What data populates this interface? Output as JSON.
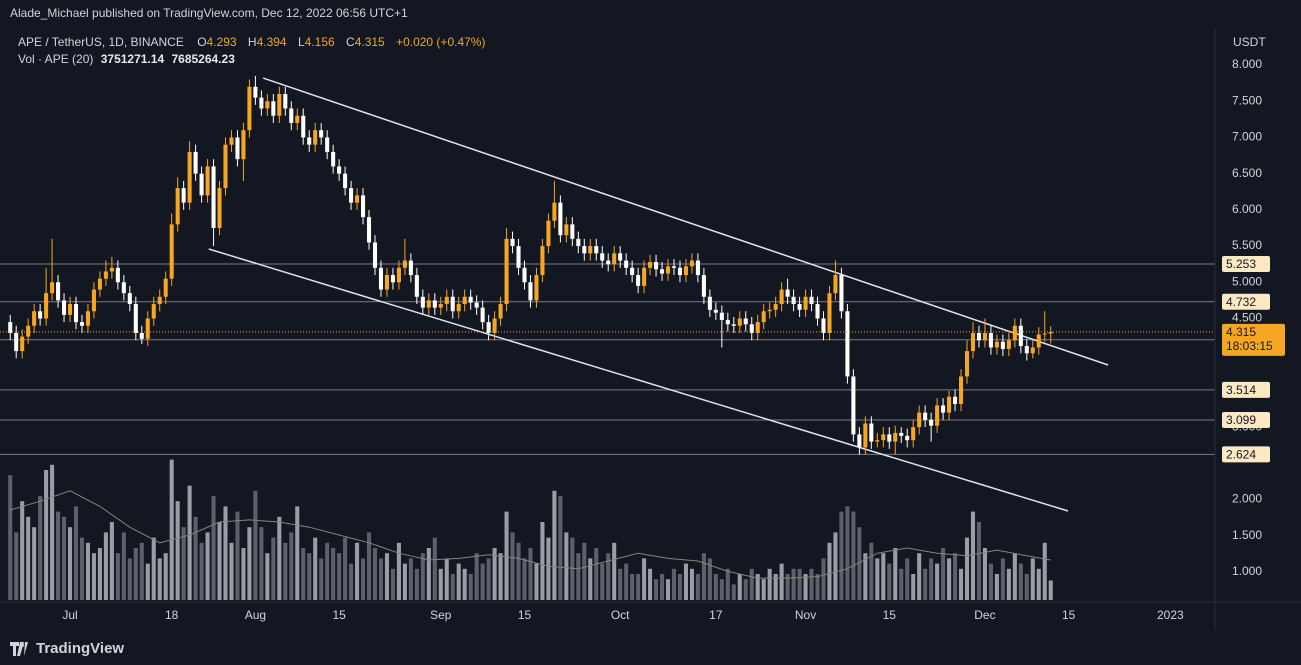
{
  "header": {
    "byline": "Alade_Michael published on TradingView.com, Dec 12, 2022 06:56 UTC+1"
  },
  "footer": {
    "brand": "TradingView"
  },
  "chart_data": {
    "type": "candlestick",
    "symbol": "APE / TetherUS, 1D, BINANCE",
    "ohlc_keys": [
      "O",
      "H",
      "L",
      "C"
    ],
    "change": "+0.020 (+0.47%)",
    "volume_title": "Vol · APE (20)",
    "price_unit": "USDT",
    "up_color": "#f5a623",
    "down_color": "#ffffff",
    "up_volume_color": "#9a9da6",
    "down_volume_color": "#5d606b",
    "level_color": "#fce9c4",
    "grid": false,
    "xlim": [
      -1.71,
      201.47
    ],
    "xticks": [
      {
        "value": 10,
        "label": "Jul"
      },
      {
        "value": 27,
        "label": "18"
      },
      {
        "value": 41,
        "label": "Aug"
      },
      {
        "value": 55,
        "label": "15"
      },
      {
        "value": 72,
        "label": "Sep"
      },
      {
        "value": 86,
        "label": "15"
      },
      {
        "value": 102,
        "label": "Oct"
      },
      {
        "value": 118,
        "label": "17"
      },
      {
        "value": 133,
        "label": "Nov"
      },
      {
        "value": 147,
        "label": "15"
      },
      {
        "value": 163,
        "label": "Dec"
      },
      {
        "value": 177,
        "label": "15"
      },
      {
        "value": 194,
        "label": "2023"
      }
    ],
    "ylim": [
      0.613,
      8.456
    ],
    "yticks": [
      {
        "value": 1,
        "label": "1.000"
      },
      {
        "value": 1.5,
        "label": "1.500"
      },
      {
        "value": 2,
        "label": "2.000"
      },
      {
        "value": 3,
        "label": "3.000"
      },
      {
        "value": 4.5,
        "label": "4.500"
      },
      {
        "value": 5,
        "label": "5.000"
      },
      {
        "value": 5.5,
        "label": "5.500"
      },
      {
        "value": 6,
        "label": "6.000"
      },
      {
        "value": 6.5,
        "label": "6.500"
      },
      {
        "value": 7,
        "label": "7.000"
      },
      {
        "value": 7.5,
        "label": "7.500"
      },
      {
        "value": 8,
        "label": "8.000"
      }
    ],
    "vol_ylim": [
      0,
      30000000
    ],
    "levels": [
      5.253,
      4.732,
      4.206,
      3.514,
      3.099,
      2.624
    ],
    "last_price": 4.315,
    "countdown": "18:03:15",
    "trendlines": [
      [
        [
          42.3,
          7.82
        ],
        [
          183.6,
          3.858
        ]
      ],
      [
        [
          33.2,
          5.46
        ],
        [
          176.9,
          1.842
        ]
      ]
    ],
    "candles": [
      [
        4.45,
        4.55,
        4.2,
        4.3
      ],
      [
        4.3,
        4.4,
        3.95,
        4.05
      ],
      [
        4.05,
        4.35,
        3.95,
        4.25
      ],
      [
        4.25,
        4.5,
        4.15,
        4.4
      ],
      [
        4.4,
        4.7,
        4.3,
        4.6
      ],
      [
        4.6,
        4.7,
        4.4,
        4.5
      ],
      [
        4.5,
        5.2,
        4.4,
        4.85
      ],
      [
        4.85,
        5.6,
        4.75,
        5.0
      ],
      [
        5.0,
        5.1,
        4.65,
        4.75
      ],
      [
        4.75,
        4.85,
        4.45,
        4.55
      ],
      [
        4.55,
        4.8,
        4.45,
        4.7
      ],
      [
        4.7,
        4.8,
        4.35,
        4.45
      ],
      [
        4.45,
        4.55,
        4.3,
        4.4
      ],
      [
        4.4,
        4.7,
        4.3,
        4.6
      ],
      [
        4.6,
        5.0,
        4.5,
        4.9
      ],
      [
        4.9,
        5.15,
        4.8,
        5.05
      ],
      [
        5.05,
        5.3,
        4.95,
        5.15
      ],
      [
        5.15,
        5.35,
        5.05,
        5.2
      ],
      [
        5.2,
        5.3,
        4.9,
        5.0
      ],
      [
        5.0,
        5.1,
        4.75,
        4.85
      ],
      [
        4.85,
        4.95,
        4.6,
        4.7
      ],
      [
        4.7,
        4.8,
        4.2,
        4.3
      ],
      [
        4.3,
        4.4,
        4.15,
        4.22
      ],
      [
        4.22,
        4.6,
        4.12,
        4.5
      ],
      [
        4.5,
        4.8,
        4.4,
        4.7
      ],
      [
        4.7,
        4.9,
        4.6,
        4.8
      ],
      [
        4.8,
        5.15,
        4.7,
        5.05
      ],
      [
        5.05,
        5.95,
        4.95,
        5.8
      ],
      [
        5.8,
        6.45,
        5.7,
        6.3
      ],
      [
        6.3,
        6.4,
        6.0,
        6.1
      ],
      [
        6.1,
        6.95,
        6.0,
        6.8
      ],
      [
        6.8,
        6.9,
        6.4,
        6.5
      ],
      [
        6.5,
        6.6,
        6.1,
        6.2
      ],
      [
        6.2,
        6.7,
        6.1,
        6.6
      ],
      [
        6.6,
        6.7,
        5.5,
        5.75
      ],
      [
        5.75,
        6.4,
        5.65,
        6.3
      ],
      [
        6.3,
        7.0,
        6.2,
        6.9
      ],
      [
        6.9,
        7.1,
        6.8,
        7.0
      ],
      [
        7.0,
        7.1,
        6.6,
        6.7
      ],
      [
        6.7,
        7.2,
        6.4,
        7.1
      ],
      [
        7.1,
        7.8,
        7.0,
        7.7
      ],
      [
        7.7,
        7.85,
        7.45,
        7.55
      ],
      [
        7.55,
        7.65,
        7.3,
        7.4
      ],
      [
        7.4,
        7.6,
        7.3,
        7.5
      ],
      [
        7.5,
        7.6,
        7.2,
        7.3
      ],
      [
        7.3,
        7.7,
        7.2,
        7.6
      ],
      [
        7.6,
        7.7,
        7.3,
        7.4
      ],
      [
        7.4,
        7.5,
        7.1,
        7.2
      ],
      [
        7.2,
        7.4,
        7.1,
        7.3
      ],
      [
        7.3,
        7.4,
        6.9,
        7.0
      ],
      [
        7.0,
        7.1,
        6.8,
        6.9
      ],
      [
        6.9,
        7.2,
        6.8,
        7.1
      ],
      [
        7.1,
        7.2,
        6.9,
        7.0
      ],
      [
        7.0,
        7.1,
        6.7,
        6.8
      ],
      [
        6.8,
        6.9,
        6.5,
        6.6
      ],
      [
        6.6,
        6.7,
        6.4,
        6.5
      ],
      [
        6.5,
        6.6,
        6.2,
        6.3
      ],
      [
        6.3,
        6.4,
        6.0,
        6.1
      ],
      [
        6.1,
        6.3,
        6.0,
        6.2
      ],
      [
        6.2,
        6.3,
        5.8,
        5.9
      ],
      [
        5.9,
        6.0,
        5.45,
        5.55
      ],
      [
        5.55,
        5.65,
        5.1,
        5.2
      ],
      [
        5.2,
        5.3,
        4.8,
        4.9
      ],
      [
        4.9,
        5.2,
        4.8,
        5.1
      ],
      [
        5.1,
        5.2,
        4.9,
        5.0
      ],
      [
        5.0,
        5.3,
        4.9,
        5.2
      ],
      [
        5.2,
        5.6,
        5.1,
        5.3
      ],
      [
        5.3,
        5.4,
        5.0,
        5.1
      ],
      [
        5.1,
        5.2,
        4.7,
        4.8
      ],
      [
        4.8,
        4.9,
        4.55,
        4.65
      ],
      [
        4.65,
        4.85,
        4.55,
        4.75
      ],
      [
        4.75,
        4.85,
        4.55,
        4.65
      ],
      [
        4.65,
        4.8,
        4.55,
        4.7
      ],
      [
        4.7,
        4.9,
        4.6,
        4.8
      ],
      [
        4.8,
        4.9,
        4.5,
        4.6
      ],
      [
        4.6,
        4.8,
        4.5,
        4.7
      ],
      [
        4.7,
        4.9,
        4.6,
        4.8
      ],
      [
        4.8,
        4.9,
        4.62,
        4.72
      ],
      [
        4.72,
        4.82,
        4.55,
        4.65
      ],
      [
        4.65,
        4.75,
        4.35,
        4.45
      ],
      [
        4.45,
        4.55,
        4.2,
        4.3
      ],
      [
        4.3,
        4.6,
        4.2,
        4.5
      ],
      [
        4.5,
        4.8,
        4.4,
        4.7
      ],
      [
        4.7,
        5.75,
        4.6,
        5.6
      ],
      [
        5.6,
        5.7,
        5.4,
        5.5
      ],
      [
        5.5,
        5.6,
        5.1,
        5.2
      ],
      [
        5.2,
        5.3,
        4.9,
        5.0
      ],
      [
        5.0,
        5.1,
        4.65,
        4.75
      ],
      [
        4.75,
        5.2,
        4.65,
        5.1
      ],
      [
        5.1,
        5.6,
        5.0,
        5.5
      ],
      [
        5.5,
        5.95,
        5.4,
        5.85
      ],
      [
        5.85,
        6.4,
        5.75,
        6.1
      ],
      [
        6.1,
        6.2,
        5.55,
        5.65
      ],
      [
        5.65,
        5.9,
        5.55,
        5.8
      ],
      [
        5.8,
        5.9,
        5.5,
        5.6
      ],
      [
        5.6,
        5.7,
        5.4,
        5.5
      ],
      [
        5.5,
        5.6,
        5.3,
        5.4
      ],
      [
        5.4,
        5.6,
        5.3,
        5.5
      ],
      [
        5.5,
        5.6,
        5.3,
        5.4
      ],
      [
        5.4,
        5.5,
        5.2,
        5.3
      ],
      [
        5.3,
        5.4,
        5.15,
        5.25
      ],
      [
        5.25,
        5.5,
        5.15,
        5.4
      ],
      [
        5.4,
        5.5,
        5.2,
        5.3
      ],
      [
        5.3,
        5.4,
        5.1,
        5.2
      ],
      [
        5.2,
        5.3,
        5.0,
        5.1
      ],
      [
        5.1,
        5.2,
        4.85,
        4.95
      ],
      [
        4.95,
        5.3,
        4.85,
        5.2
      ],
      [
        5.2,
        5.38,
        5.1,
        5.28
      ],
      [
        5.28,
        5.38,
        5.08,
        5.18
      ],
      [
        5.18,
        5.28,
        5.02,
        5.12
      ],
      [
        5.12,
        5.32,
        5.02,
        5.22
      ],
      [
        5.22,
        5.32,
        5.1,
        5.2
      ],
      [
        5.2,
        5.3,
        5.0,
        5.1
      ],
      [
        5.1,
        5.32,
        5.0,
        5.22
      ],
      [
        5.22,
        5.4,
        5.12,
        5.3
      ],
      [
        5.3,
        5.4,
        5.0,
        5.1
      ],
      [
        5.1,
        5.2,
        4.7,
        4.8
      ],
      [
        4.8,
        4.9,
        4.52,
        4.62
      ],
      [
        4.62,
        4.72,
        4.48,
        4.58
      ],
      [
        4.58,
        4.68,
        4.1,
        4.48
      ],
      [
        4.48,
        4.58,
        4.32,
        4.42
      ],
      [
        4.42,
        4.52,
        4.3,
        4.4
      ],
      [
        4.4,
        4.6,
        4.3,
        4.5
      ],
      [
        4.5,
        4.6,
        4.32,
        4.42
      ],
      [
        4.42,
        4.52,
        4.2,
        4.3
      ],
      [
        4.3,
        4.55,
        4.2,
        4.45
      ],
      [
        4.45,
        4.7,
        4.35,
        4.6
      ],
      [
        4.6,
        4.72,
        4.5,
        4.62
      ],
      [
        4.62,
        4.8,
        4.52,
        4.7
      ],
      [
        4.7,
        5.0,
        4.6,
        4.9
      ],
      [
        4.9,
        5.05,
        4.7,
        4.8
      ],
      [
        4.8,
        4.9,
        4.6,
        4.7
      ],
      [
        4.7,
        4.8,
        4.52,
        4.62
      ],
      [
        4.62,
        4.9,
        4.52,
        4.8
      ],
      [
        4.8,
        4.9,
        4.6,
        4.7
      ],
      [
        4.7,
        4.8,
        4.4,
        4.5
      ],
      [
        4.5,
        4.6,
        4.2,
        4.3
      ],
      [
        4.3,
        4.95,
        4.2,
        4.85
      ],
      [
        4.85,
        5.3,
        4.75,
        5.1
      ],
      [
        5.1,
        5.2,
        4.5,
        4.6
      ],
      [
        4.6,
        4.7,
        3.6,
        3.7
      ],
      [
        3.7,
        3.8,
        2.8,
        2.9
      ],
      [
        2.9,
        3.0,
        2.62,
        2.72
      ],
      [
        2.72,
        3.15,
        2.62,
        3.05
      ],
      [
        3.05,
        3.15,
        2.7,
        2.8
      ],
      [
        2.8,
        2.92,
        2.72,
        2.82
      ],
      [
        2.82,
        3.0,
        2.72,
        2.9
      ],
      [
        2.9,
        3.0,
        2.7,
        2.8
      ],
      [
        2.8,
        3.02,
        2.62,
        2.92
      ],
      [
        2.92,
        3.0,
        2.78,
        2.88
      ],
      [
        2.88,
        2.98,
        2.72,
        2.82
      ],
      [
        2.82,
        3.1,
        2.72,
        3.0
      ],
      [
        3.0,
        3.3,
        2.9,
        3.2
      ],
      [
        3.2,
        3.3,
        3.0,
        3.1
      ],
      [
        3.1,
        3.2,
        2.8,
        3.02
      ],
      [
        3.02,
        3.4,
        2.92,
        3.3
      ],
      [
        3.3,
        3.4,
        3.1,
        3.2
      ],
      [
        3.2,
        3.5,
        3.1,
        3.42
      ],
      [
        3.42,
        3.52,
        3.22,
        3.32
      ],
      [
        3.32,
        3.8,
        3.22,
        3.7
      ],
      [
        3.7,
        4.2,
        3.6,
        4.05
      ],
      [
        4.05,
        4.45,
        3.95,
        4.3
      ],
      [
        4.3,
        4.4,
        4.1,
        4.2
      ],
      [
        4.2,
        4.5,
        4.1,
        4.3
      ],
      [
        4.3,
        4.4,
        4.0,
        4.1
      ],
      [
        4.1,
        4.28,
        4.0,
        4.18
      ],
      [
        4.18,
        4.28,
        3.98,
        4.08
      ],
      [
        4.08,
        4.3,
        3.98,
        4.2
      ],
      [
        4.2,
        4.5,
        4.1,
        4.4
      ],
      [
        4.4,
        4.5,
        4.02,
        4.12
      ],
      [
        4.12,
        4.22,
        3.92,
        4.02
      ],
      [
        4.02,
        4.2,
        3.95,
        4.1
      ],
      [
        4.1,
        4.38,
        4.0,
        4.28
      ],
      [
        4.28,
        4.6,
        4.18,
        4.293
      ],
      [
        4.293,
        4.394,
        4.156,
        4.315
      ]
    ],
    "volumes": [
      24000000.0,
      13000000.0,
      19000000.0,
      16000000.0,
      14000000.0,
      20000000.0,
      25000000.0,
      26000000.0,
      17000000.0,
      16000000.0,
      14000000.0,
      18000000.0,
      12000000.0,
      11000000.0,
      9000000.0,
      10000000.0,
      13000000.0,
      15000000.0,
      9000000.0,
      13000000.0,
      8000000.0,
      10000000.0,
      11000000.0,
      7000000.0,
      12000000.0,
      8000000.0,
      9000000.0,
      27000000.0,
      19000000.0,
      14000000.0,
      22000000.0,
      16000000.0,
      11000000.0,
      13000000.0,
      20000000.0,
      15000000.0,
      18000000.0,
      11000000.0,
      17000000.0,
      10000000.0,
      14000000.0,
      21000000.0,
      14000000.0,
      9000000.0,
      12000000.0,
      16000000.0,
      11000000.0,
      13000000.0,
      18000000.0,
      10000000.0,
      9000000.0,
      12000000.0,
      8000000.0,
      11000000.0,
      10000000.0,
      9000000.0,
      12000000.0,
      7000000.0,
      11000000.0,
      8000000.0,
      13000000.0,
      10000000.0,
      8000000.0,
      9000000.0,
      6000000.0,
      11000000.0,
      7000000.0,
      8000000.0,
      6000000.0,
      9000000.0,
      10000000.0,
      12000000.0,
      6000000.0,
      8000000.0,
      5000000.0,
      7000000.0,
      6000000.0,
      5000000.0,
      9000000.0,
      7000000.0,
      8000000.0,
      10000000.0,
      9000000.0,
      17000000.0,
      13000000.0,
      11000000.0,
      8000000.0,
      10000000.0,
      7000000.0,
      15000000.0,
      12000000.0,
      21000000.0,
      20000000.0,
      13000000.0,
      12000000.0,
      9000000.0,
      11000000.0,
      8000000.0,
      10000000.0,
      7000000.0,
      9000000.0,
      11000000.0,
      6000000.0,
      7000000.0,
      5000000.0,
      5000000.0,
      8000000.0,
      6000000.0,
      4000000.0,
      5000000.0,
      4000000.0,
      6000000.0,
      5000000.0,
      7000000.0,
      6000000.0,
      5000000.0,
      9000000.0,
      8000000.0,
      5000000.0,
      4000000.0,
      6000000.0,
      3000000.0,
      5000000.0,
      4000000.0,
      6000000.0,
      5000000.0,
      4000000.0,
      6000000.0,
      5000000.0,
      7000000.0,
      5000000.0,
      6000000.0,
      6000000.0,
      5000000.0,
      6000000.0,
      5000000.0,
      8000000.0,
      11000000.0,
      13000000.0,
      17000000.0,
      18000000.0,
      17000000.0,
      14000000.0,
      9000000.0,
      11000000.0,
      8000000.0,
      9000000.0,
      7000000.0,
      10000000.0,
      6000000.0,
      8000000.0,
      5000000.0,
      9000000.0,
      6000000.0,
      8000000.0,
      7000000.0,
      10000000.0,
      8000000.0,
      9000000.0,
      6000000.0,
      12000000.0,
      17000000.0,
      15000000.0,
      10000000.0,
      7000000.0,
      5000000.0,
      8000000.0,
      6000000.0,
      9000000.0,
      7000000.0,
      5000000.0,
      8000000.0,
      6000000.0,
      11000000.0,
      3751271.14
    ],
    "volume_ma": {
      "color": "#8a8278",
      "x": [
        0,
        5,
        10,
        15,
        20,
        25,
        30,
        35,
        40,
        45,
        50,
        55,
        60,
        65,
        70,
        75,
        80,
        85,
        90,
        95,
        100,
        105,
        110,
        115,
        120,
        125,
        130,
        135,
        140,
        145,
        150,
        155,
        160,
        165,
        170,
        174
      ],
      "values": [
        17300000.0,
        19000000.0,
        21000000.0,
        18000000.0,
        14000000.0,
        11000000.0,
        12500000.0,
        15000000.0,
        15400000.0,
        15000000.0,
        14000000.0,
        12500000.0,
        11000000.0,
        9000000.0,
        7700000.0,
        8000000.0,
        8700000.0,
        8000000.0,
        6500000.0,
        6000000.0,
        7500000.0,
        9000000.0,
        8000000.0,
        7500000.0,
        5500000.0,
        4200000.0,
        4200000.0,
        4500000.0,
        6000000.0,
        9000000.0,
        10000000.0,
        9000000.0,
        8500000.0,
        9600000.0,
        8500000.0,
        7685264.23
      ]
    }
  }
}
